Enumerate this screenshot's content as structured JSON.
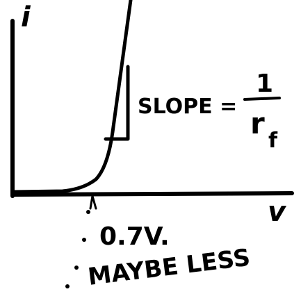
{
  "axes": {
    "y_label": "i",
    "x_label": "v"
  },
  "annotations": {
    "slope": {
      "label": "SLOPE =",
      "numerator": "1",
      "denominator": "r",
      "subscript": "f"
    },
    "threshold": "0.7V.",
    "note": "MAYBE LESS"
  }
}
